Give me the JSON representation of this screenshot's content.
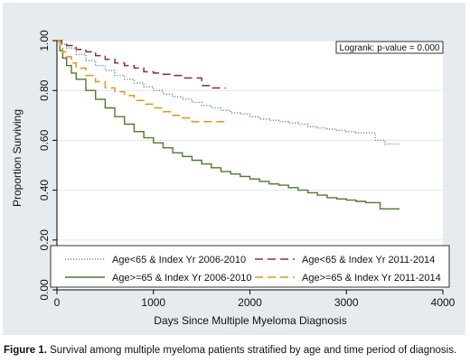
{
  "chart_data": {
    "type": "line",
    "title": "",
    "xlabel": "Days Since Multiple Myeloma Diagnosis",
    "ylabel": "Proportion Surviving",
    "xlim": [
      0,
      4000
    ],
    "ylim": [
      0,
      1
    ],
    "x_ticks": [
      0,
      1000,
      2000,
      3000,
      4000
    ],
    "x_tick_labels": [
      "0",
      "1000",
      "2000",
      "3000",
      "4000"
    ],
    "y_ticks": [
      0,
      0.2,
      0.4,
      0.6,
      0.8,
      1.0
    ],
    "y_tick_labels": [
      "0.00",
      "0.20",
      "0.40",
      "0.60",
      "0.80",
      "1.00"
    ],
    "grid": "horizontal",
    "legend_position": "bottom",
    "annotation": "Logrank: p-value = 0.000",
    "series": [
      {
        "name": "Age<65 & Index Yr 2006-2010",
        "color": "#6f8fb4",
        "style": "dotted",
        "x": [
          0,
          50,
          100,
          200,
          300,
          400,
          500,
          600,
          700,
          800,
          900,
          1000,
          1100,
          1200,
          1300,
          1400,
          1500,
          1600,
          1700,
          1800,
          1900,
          2000,
          2100,
          2200,
          2300,
          2400,
          2500,
          2600,
          2700,
          2800,
          2900,
          3000,
          3100,
          3200,
          3300,
          3400,
          3550
        ],
        "y": [
          1.0,
          0.985,
          0.97,
          0.945,
          0.92,
          0.9,
          0.88,
          0.86,
          0.845,
          0.83,
          0.815,
          0.8,
          0.785,
          0.775,
          0.765,
          0.752,
          0.74,
          0.73,
          0.72,
          0.71,
          0.705,
          0.695,
          0.685,
          0.68,
          0.675,
          0.67,
          0.665,
          0.655,
          0.65,
          0.645,
          0.64,
          0.635,
          0.63,
          0.63,
          0.6,
          0.585,
          0.585
        ]
      },
      {
        "name": "Age<65 & Index Yr 2011-2014",
        "color": "#8b2e3c",
        "style": "dashed",
        "x": [
          0,
          50,
          100,
          200,
          300,
          400,
          500,
          600,
          700,
          800,
          900,
          1000,
          1100,
          1200,
          1300,
          1400,
          1500,
          1600,
          1700,
          1750
        ],
        "y": [
          1.0,
          0.99,
          0.98,
          0.965,
          0.955,
          0.94,
          0.925,
          0.91,
          0.9,
          0.89,
          0.875,
          0.87,
          0.865,
          0.86,
          0.85,
          0.85,
          0.82,
          0.81,
          0.81,
          0.81
        ]
      },
      {
        "name": "Age>=65 & Index Yr 2006-2010",
        "color": "#4f7a2c",
        "style": "solid",
        "x": [
          0,
          30,
          60,
          100,
          150,
          200,
          300,
          400,
          500,
          600,
          700,
          800,
          900,
          1000,
          1100,
          1200,
          1300,
          1400,
          1500,
          1600,
          1700,
          1800,
          1900,
          2000,
          2100,
          2200,
          2300,
          2400,
          2500,
          2600,
          2700,
          2800,
          2900,
          3000,
          3100,
          3200,
          3300,
          3350,
          3550
        ],
        "y": [
          1.0,
          0.96,
          0.93,
          0.9,
          0.87,
          0.845,
          0.8,
          0.765,
          0.73,
          0.695,
          0.665,
          0.635,
          0.61,
          0.59,
          0.57,
          0.55,
          0.535,
          0.52,
          0.505,
          0.49,
          0.475,
          0.465,
          0.455,
          0.445,
          0.435,
          0.425,
          0.42,
          0.41,
          0.4,
          0.39,
          0.38,
          0.37,
          0.365,
          0.36,
          0.355,
          0.35,
          0.35,
          0.325,
          0.325
        ]
      },
      {
        "name": "Age>=65 & Index Yr 2011-2014",
        "color": "#e69512",
        "style": "dashed",
        "x": [
          0,
          30,
          60,
          100,
          150,
          200,
          300,
          400,
          500,
          600,
          700,
          800,
          900,
          1000,
          1100,
          1200,
          1300,
          1400,
          1500,
          1600,
          1700,
          1750
        ],
        "y": [
          1.0,
          0.975,
          0.955,
          0.935,
          0.91,
          0.89,
          0.86,
          0.835,
          0.81,
          0.795,
          0.78,
          0.76,
          0.745,
          0.73,
          0.715,
          0.7,
          0.69,
          0.675,
          0.675,
          0.675,
          0.675,
          0.675
        ]
      }
    ]
  },
  "caption": {
    "label": "Figure 1.",
    "text": " Survival among multiple myeloma patients stratified by age and time period of diagnosis."
  }
}
